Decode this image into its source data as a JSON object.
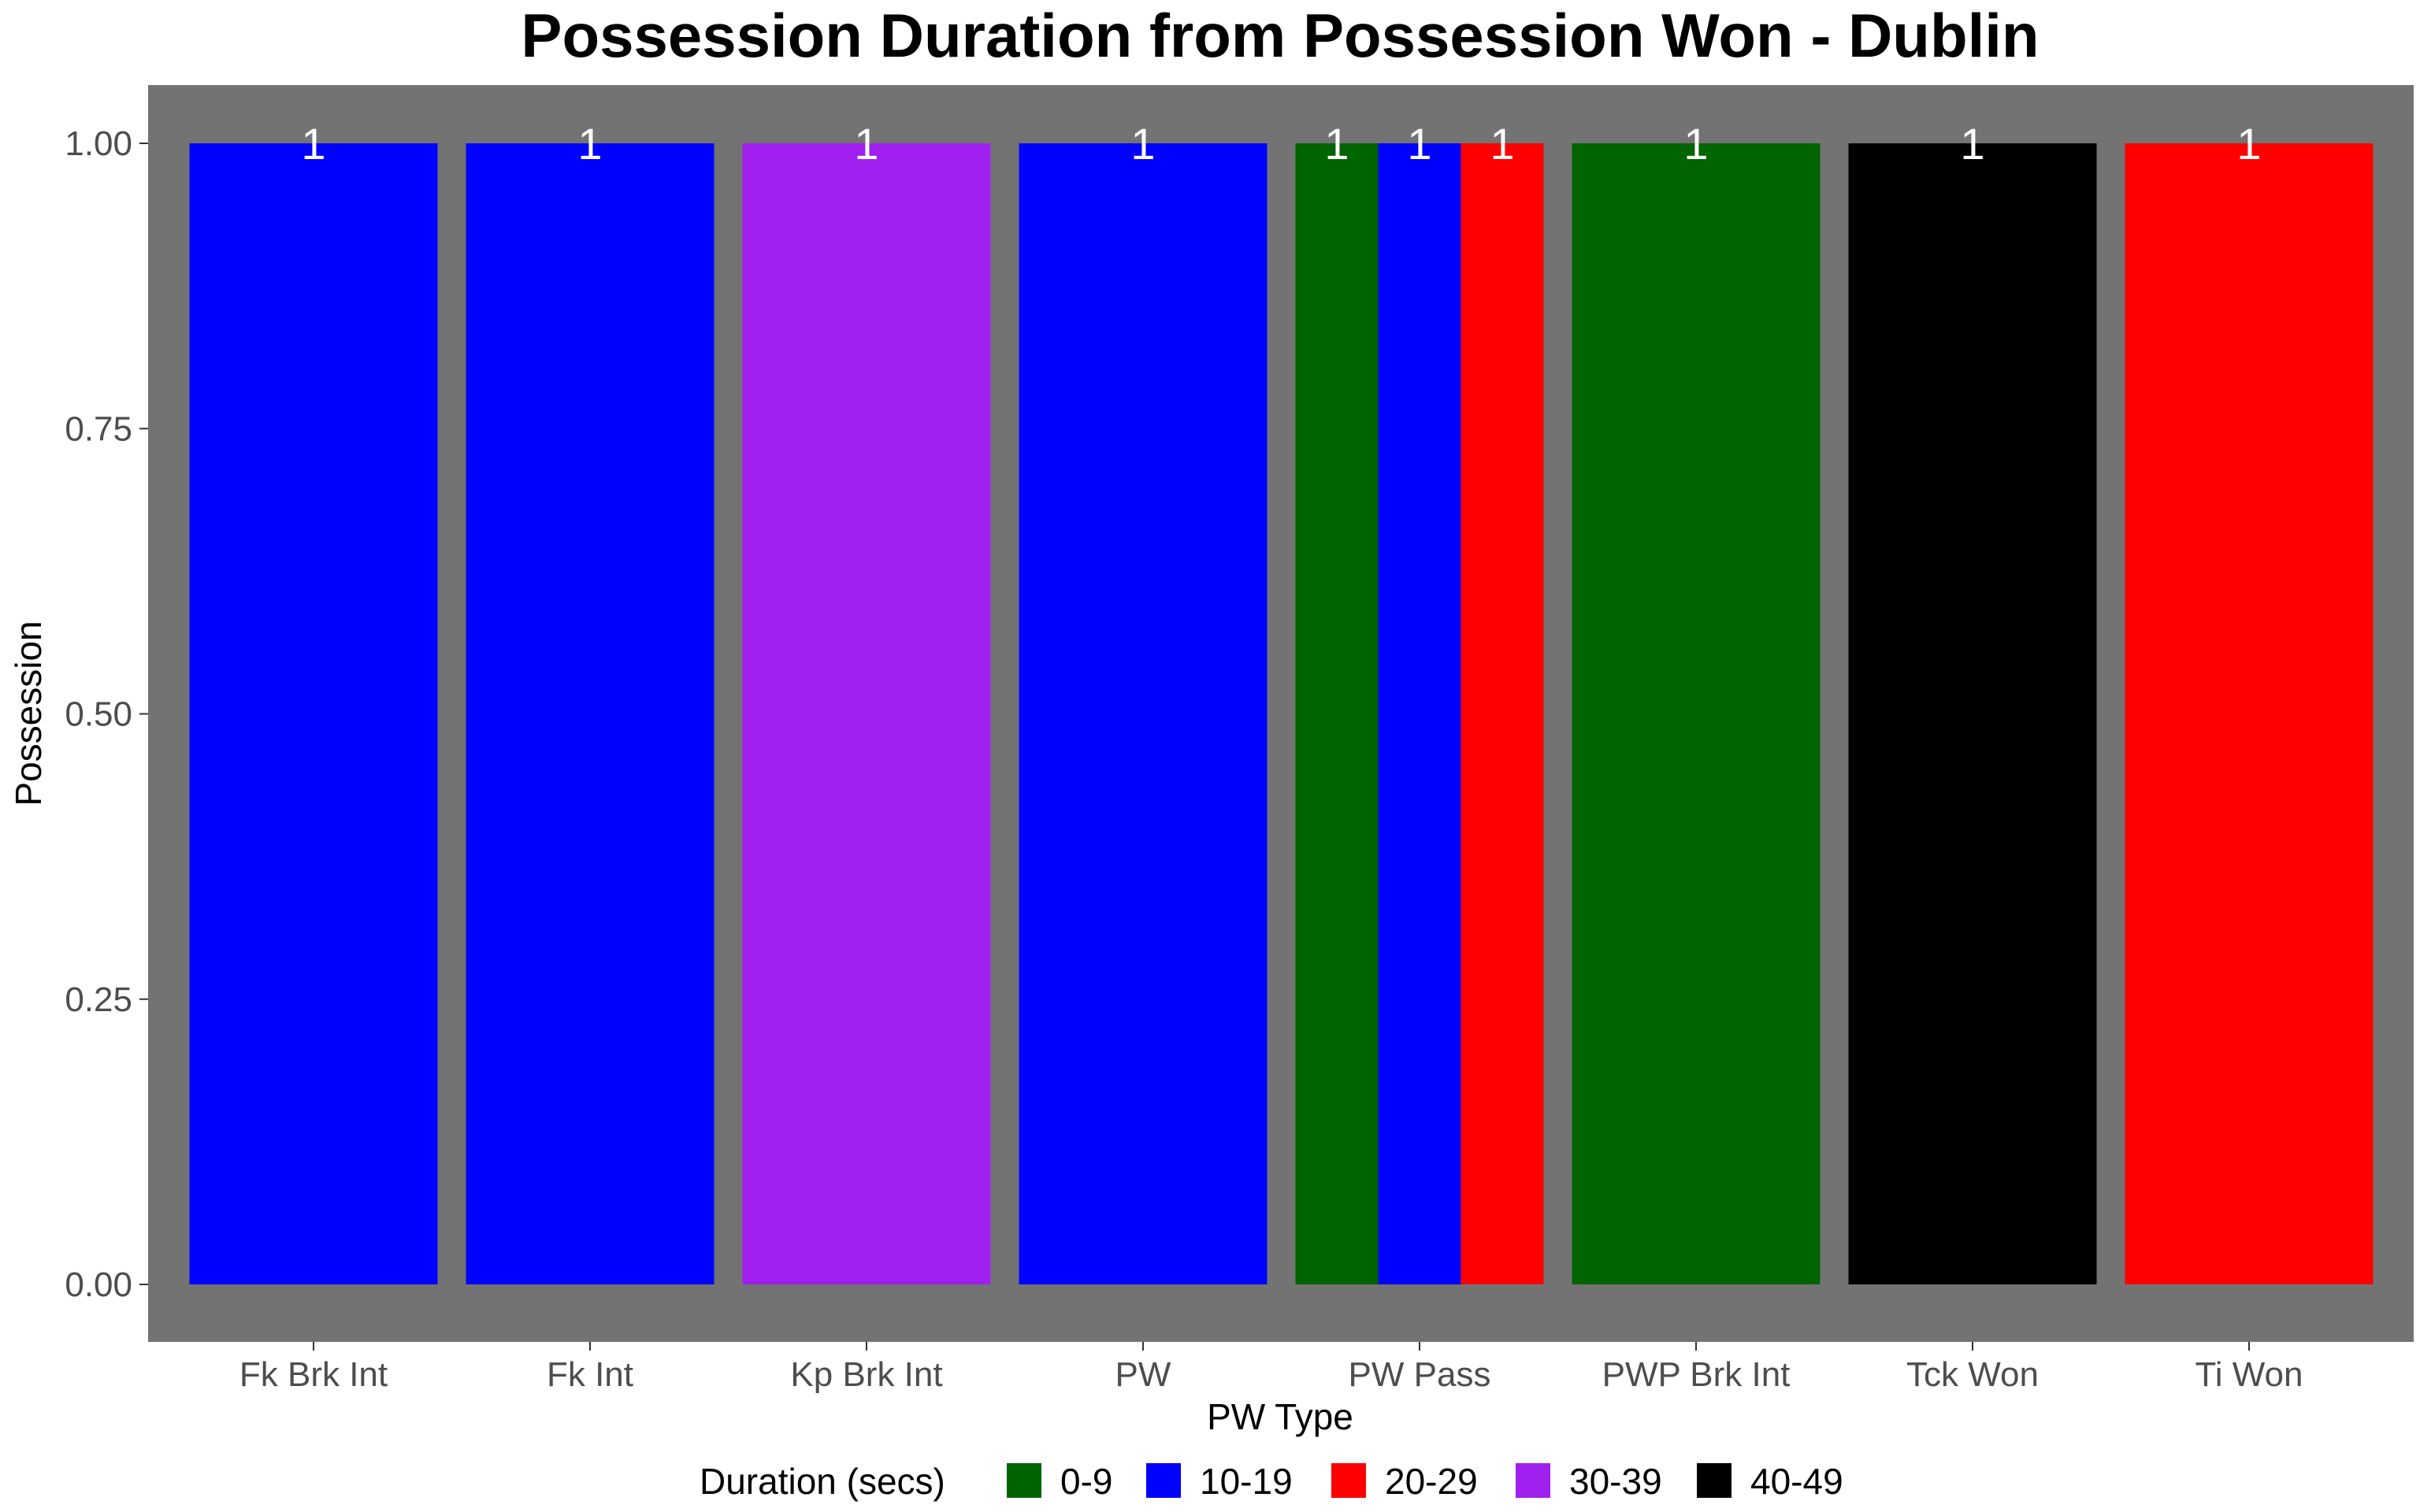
{
  "chart_data": {
    "type": "bar",
    "stacking": "dodge",
    "title": "Possession Duration from Possession Won - Dublin",
    "xlabel": "PW Type",
    "ylabel": "Possession",
    "ylim": [
      0,
      1.05
    ],
    "yticks": [
      "0.00",
      "0.25",
      "0.50",
      "0.75",
      "1.00"
    ],
    "ytick_values": [
      0,
      0.25,
      0.5,
      0.75,
      1.0
    ],
    "categories": [
      "Fk Brk Int",
      "Fk Int",
      "Kp Brk Int",
      "PW",
      "PW Pass",
      "PWP Brk Int",
      "Tck Won",
      "Ti Won"
    ],
    "bars": [
      {
        "category": "Fk Brk Int",
        "duration": "10-19",
        "value": 1,
        "label": "1"
      },
      {
        "category": "Fk Int",
        "duration": "10-19",
        "value": 1,
        "label": "1"
      },
      {
        "category": "Kp Brk Int",
        "duration": "30-39",
        "value": 1,
        "label": "1"
      },
      {
        "category": "PW",
        "duration": "10-19",
        "value": 1,
        "label": "1"
      },
      {
        "category": "PW Pass",
        "duration": "0-9",
        "value": 1,
        "label": "1"
      },
      {
        "category": "PW Pass",
        "duration": "10-19",
        "value": 1,
        "label": "1"
      },
      {
        "category": "PW Pass",
        "duration": "20-29",
        "value": 1,
        "label": "1"
      },
      {
        "category": "PWP Brk Int",
        "duration": "0-9",
        "value": 1,
        "label": "1"
      },
      {
        "category": "Tck Won",
        "duration": "40-49",
        "value": 1,
        "label": "1"
      },
      {
        "category": "Ti Won",
        "duration": "20-29",
        "value": 1,
        "label": "1"
      }
    ],
    "legend": {
      "title": "Duration (secs)",
      "position": "bottom",
      "items": [
        {
          "label": "0-9",
          "color": "#006400"
        },
        {
          "label": "10-19",
          "color": "#0000ff"
        },
        {
          "label": "20-29",
          "color": "#ff0000"
        },
        {
          "label": "30-39",
          "color": "#a020f0"
        },
        {
          "label": "40-49",
          "color": "#000000"
        }
      ]
    },
    "panel_background": "#737373",
    "grid": false
  }
}
